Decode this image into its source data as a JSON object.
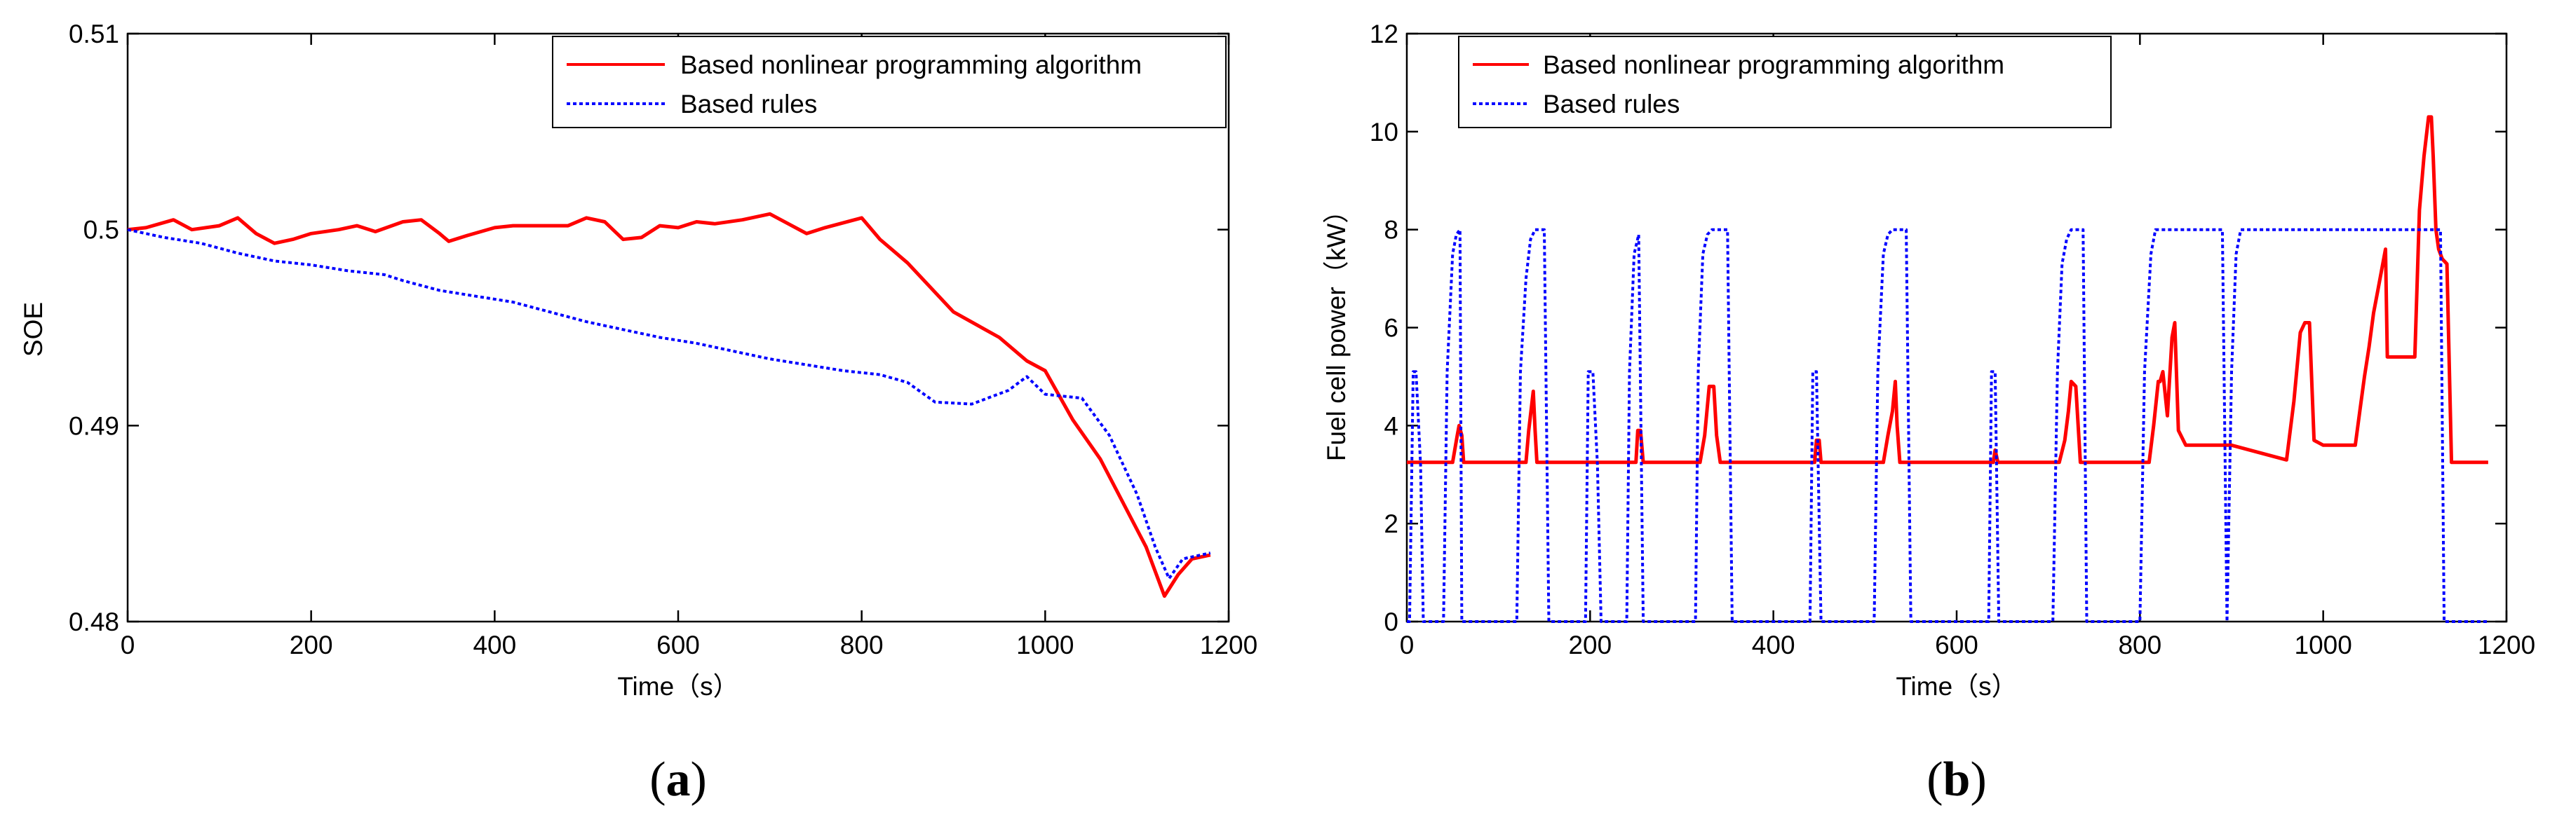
{
  "chart_data": [
    {
      "type": "line",
      "panel": "a",
      "panel_label": {
        "open": "(",
        "letter": "a",
        "close": ")"
      },
      "xlabel": "Time（s）",
      "ylabel": "SOE",
      "xlim": [
        0,
        1200
      ],
      "ylim": [
        0.48,
        0.51
      ],
      "xticks": [
        0,
        200,
        400,
        600,
        800,
        1000,
        1200
      ],
      "xtick_labels": [
        "0",
        "200",
        "400",
        "600",
        "800",
        "1000",
        "1200"
      ],
      "yticks": [
        0.48,
        0.49,
        0.5,
        0.51
      ],
      "ytick_labels": [
        "0.48",
        "0.49",
        "0.5",
        "0.51"
      ],
      "legend_position": "top-right",
      "series": [
        {
          "name": "Based nonlinear programming algorithm",
          "color": "#ff0000",
          "style": "solid",
          "x": [
            0,
            20,
            50,
            70,
            100,
            120,
            140,
            160,
            180,
            200,
            230,
            250,
            270,
            300,
            320,
            340,
            350,
            370,
            400,
            420,
            450,
            480,
            500,
            520,
            540,
            560,
            580,
            600,
            620,
            640,
            670,
            700,
            720,
            740,
            760,
            800,
            820,
            850,
            900,
            950,
            980,
            1000,
            1030,
            1060,
            1090,
            1110,
            1130,
            1145,
            1160,
            1180
          ],
          "y": [
            0.5,
            0.5001,
            0.5005,
            0.5,
            0.5002,
            0.5006,
            0.4998,
            0.4993,
            0.4995,
            0.4998,
            0.5,
            0.5002,
            0.4999,
            0.5004,
            0.5005,
            0.4998,
            0.4994,
            0.4997,
            0.5001,
            0.5002,
            0.5002,
            0.5002,
            0.5006,
            0.5004,
            0.4995,
            0.4996,
            0.5002,
            0.5001,
            0.5004,
            0.5003,
            0.5005,
            0.5008,
            0.5003,
            0.4998,
            0.5001,
            0.5006,
            0.4995,
            0.4983,
            0.4958,
            0.4945,
            0.4933,
            0.4928,
            0.4903,
            0.4883,
            0.4856,
            0.4838,
            0.4813,
            0.4824,
            0.4832,
            0.4834
          ]
        },
        {
          "name": "Based rules",
          "color": "#0000ff",
          "style": "dotted",
          "x": [
            0,
            40,
            80,
            120,
            160,
            200,
            240,
            280,
            300,
            340,
            380,
            420,
            460,
            500,
            540,
            580,
            620,
            660,
            700,
            740,
            780,
            820,
            850,
            880,
            920,
            960,
            980,
            1000,
            1040,
            1070,
            1100,
            1120,
            1135,
            1150,
            1180
          ],
          "y": [
            0.5,
            0.4996,
            0.4993,
            0.4988,
            0.4984,
            0.4982,
            0.4979,
            0.4977,
            0.4974,
            0.4969,
            0.4966,
            0.4963,
            0.4958,
            0.4953,
            0.4949,
            0.4945,
            0.4942,
            0.4938,
            0.4934,
            0.4931,
            0.4928,
            0.4926,
            0.4922,
            0.4912,
            0.4911,
            0.4918,
            0.4925,
            0.4916,
            0.4914,
            0.4895,
            0.4865,
            0.4838,
            0.4822,
            0.4832,
            0.4835
          ]
        }
      ]
    },
    {
      "type": "line",
      "panel": "b",
      "panel_label": {
        "open": "(",
        "letter": "b",
        "close": ")"
      },
      "xlabel": "Time（s）",
      "ylabel": "Fuel cell power（kW）",
      "xlim": [
        0,
        1200
      ],
      "ylim": [
        0,
        12
      ],
      "xticks": [
        0,
        200,
        400,
        600,
        800,
        1000,
        1200
      ],
      "xtick_labels": [
        "0",
        "200",
        "400",
        "600",
        "800",
        "1000",
        "1200"
      ],
      "yticks": [
        0,
        2,
        4,
        6,
        8,
        10,
        12
      ],
      "ytick_labels": [
        "0",
        "2",
        "4",
        "6",
        "8",
        "10",
        "12"
      ],
      "legend_position": "top-left",
      "series": [
        {
          "name": "Based nonlinear programming algorithm",
          "color": "#ff0000",
          "style": "solid",
          "x": [
            0,
            50,
            55,
            57,
            60,
            62,
            65,
            130,
            133,
            138,
            140,
            142,
            145,
            250,
            252,
            255,
            258,
            260,
            320,
            325,
            330,
            335,
            338,
            342,
            445,
            447,
            450,
            452,
            520,
            525,
            530,
            533,
            535,
            538,
            640,
            642,
            645,
            712,
            718,
            722,
            725,
            730,
            735,
            810,
            815,
            820,
            822,
            825,
            830,
            835,
            838,
            842,
            850,
            900,
            960,
            968,
            975,
            980,
            985,
            990,
            1000,
            1035,
            1040,
            1045,
            1050,
            1055,
            1060,
            1065,
            1068,
            1070,
            1075,
            1100,
            1105,
            1110,
            1115,
            1118,
            1120,
            1123,
            1126,
            1130,
            1135,
            1140,
            1180
          ],
          "y": [
            3.25,
            3.25,
            3.8,
            4.0,
            3.8,
            3.25,
            3.25,
            3.25,
            3.9,
            4.7,
            3.9,
            3.25,
            3.25,
            3.25,
            3.9,
            3.9,
            3.25,
            3.25,
            3.25,
            3.8,
            4.8,
            4.8,
            3.8,
            3.25,
            3.25,
            3.7,
            3.7,
            3.25,
            3.25,
            3.8,
            4.3,
            4.9,
            4.0,
            3.25,
            3.25,
            3.5,
            3.25,
            3.25,
            3.7,
            4.3,
            4.9,
            4.8,
            3.25,
            3.25,
            4.0,
            4.9,
            4.9,
            5.1,
            4.2,
            5.8,
            6.1,
            3.9,
            3.6,
            3.6,
            3.3,
            4.5,
            5.9,
            6.1,
            6.1,
            3.7,
            3.6,
            3.6,
            4.3,
            5.0,
            5.6,
            6.3,
            6.8,
            7.3,
            7.6,
            5.4,
            5.4,
            5.4,
            8.4,
            9.5,
            10.3,
            10.3,
            9.5,
            8.0,
            7.6,
            7.4,
            7.3,
            3.25,
            3.25
          ]
        },
        {
          "name": "Based rules",
          "color": "#0000ff",
          "style": "dotted",
          "x": [
            0,
            3,
            7,
            10,
            15,
            18,
            20,
            40,
            44,
            50,
            54,
            58,
            60,
            120,
            124,
            130,
            135,
            140,
            145,
            150,
            155,
            195,
            198,
            203,
            208,
            212,
            240,
            243,
            248,
            253,
            258,
            315,
            318,
            323,
            328,
            333,
            350,
            355,
            440,
            443,
            447,
            452,
            510,
            514,
            520,
            525,
            530,
            545,
            550,
            635,
            638,
            642,
            646,
            705,
            710,
            715,
            720,
            725,
            738,
            742,
            800,
            805,
            812,
            817,
            822,
            890,
            895,
            900,
            905,
            910,
            1125,
            1128,
            1132,
            1180
          ],
          "y": [
            0,
            0,
            5.1,
            5.1,
            3.2,
            0,
            0,
            0,
            5.1,
            7.5,
            7.9,
            8.0,
            0,
            0,
            5.1,
            7.0,
            7.8,
            8.0,
            8.0,
            8.0,
            0,
            0,
            5.1,
            5.1,
            3.2,
            0,
            0,
            5.1,
            7.5,
            7.9,
            0,
            0,
            5.1,
            7.5,
            7.9,
            8.0,
            8.0,
            0,
            0,
            5.1,
            5.1,
            0,
            0,
            5.1,
            7.5,
            7.9,
            8.0,
            8.0,
            0,
            0,
            5.1,
            5.1,
            0,
            0,
            5.1,
            7.3,
            7.8,
            8.0,
            8.0,
            0,
            0,
            5.1,
            7.5,
            8.0,
            8.0,
            8.0,
            0,
            5.1,
            7.5,
            8.0,
            8.0,
            8.0,
            0,
            0
          ]
        }
      ]
    }
  ]
}
